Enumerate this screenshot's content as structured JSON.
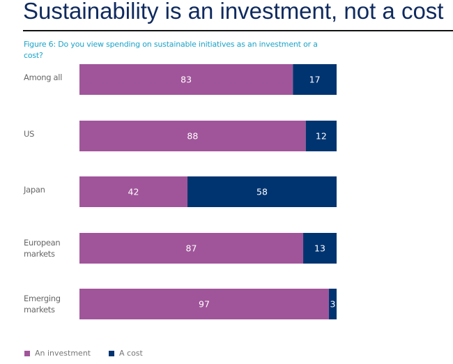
{
  "header": {
    "title": "Sustainability is an investment, not a cost"
  },
  "chart_data": {
    "type": "bar",
    "orientation": "horizontal",
    "stacked": true,
    "title": "Figure 6: Do you view spending on sustainable initiatives as an investment or a cost?",
    "categories": [
      "Among all",
      "US",
      "Japan",
      "European markets",
      "Emerging markets"
    ],
    "category_lines": [
      [
        "Among all"
      ],
      [
        "US"
      ],
      [
        "Japan"
      ],
      [
        "European",
        "markets"
      ],
      [
        "Emerging",
        "markets"
      ]
    ],
    "series": [
      {
        "name": "An investment",
        "color": "#A0559A",
        "values": [
          83,
          88,
          42,
          87,
          97
        ]
      },
      {
        "name": "A cost",
        "color": "#003470",
        "values": [
          17,
          12,
          58,
          13,
          3
        ]
      }
    ],
    "xlim": [
      0,
      100
    ],
    "xlabel": "",
    "ylabel": "",
    "grid": false,
    "data_labels": true,
    "legend": "bottom-left"
  }
}
